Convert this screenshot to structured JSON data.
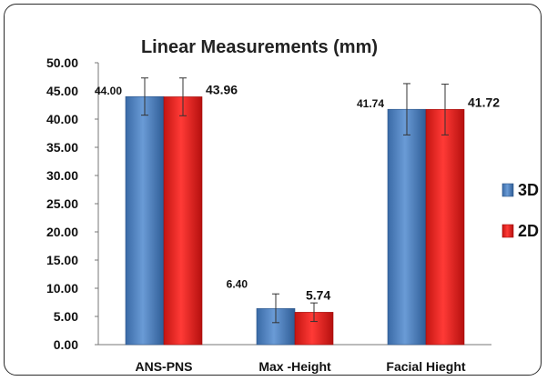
{
  "chart_data": {
    "type": "bar",
    "title": "Linear Measurements (mm)",
    "categories": [
      "ANS-PNS",
      "Max -Height",
      "Facial Hieght"
    ],
    "series": [
      {
        "name": "3D",
        "values": [
          44.0,
          6.4,
          41.74
        ],
        "labels": [
          "44.00",
          "6.40",
          "41.74"
        ],
        "error_low": [
          40.7,
          3.9,
          37.2
        ],
        "error_high": [
          47.3,
          9.0,
          46.3
        ],
        "color": "#4a7ebb"
      },
      {
        "name": "2D",
        "values": [
          43.96,
          5.74,
          41.72
        ],
        "labels": [
          "43.96",
          "5.74",
          "41.72"
        ],
        "error_low": [
          40.6,
          4.1,
          37.2
        ],
        "error_high": [
          47.3,
          7.4,
          46.2
        ],
        "color": "#e8211f"
      }
    ],
    "ylim": [
      0,
      50
    ],
    "yticks": [
      "0.00",
      "5.00",
      "10.00",
      "15.00",
      "20.00",
      "25.00",
      "30.00",
      "35.00",
      "40.00",
      "45.00",
      "50.00"
    ],
    "grid": false,
    "legend": "right"
  }
}
